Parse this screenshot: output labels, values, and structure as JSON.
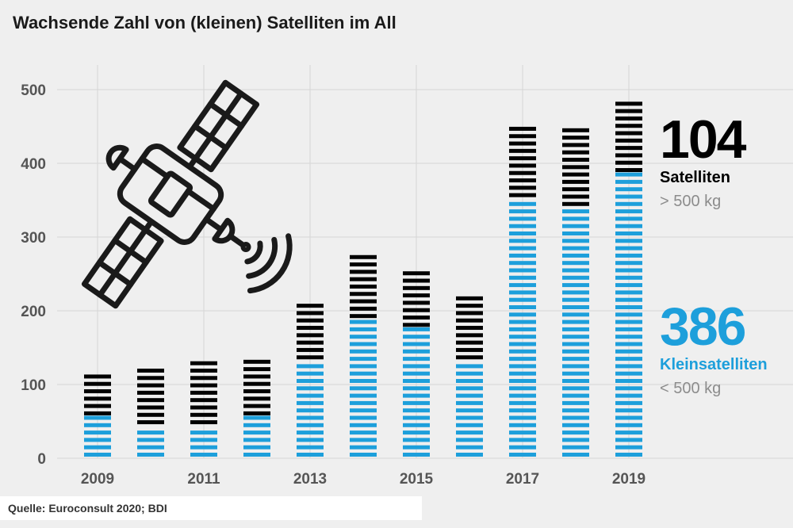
{
  "title": "Wachsende Zahl von (kleinen) Satelliten im All",
  "source": "Quelle: Euroconsult 2020; BDI",
  "colors": {
    "large": "#000000",
    "small": "#1d9fdb",
    "grid": "#d6d6d6",
    "axis_text": "#555555"
  },
  "icons": {
    "satellite": "satellite-icon"
  },
  "callouts": {
    "large": {
      "value": "104",
      "label": "Satelliten",
      "sublabel": "> 500 kg"
    },
    "small": {
      "value": "386",
      "label": "Kleinsatelliten",
      "sublabel": "< 500 kg"
    }
  },
  "chart_data": {
    "type": "bar",
    "stacked": true,
    "x": [
      2009,
      2010,
      2011,
      2012,
      2013,
      2014,
      2015,
      2016,
      2017,
      2018,
      2019
    ],
    "xticks": [
      "2009",
      "2011",
      "2013",
      "2015",
      "2017",
      "2019"
    ],
    "yticks": [
      "0",
      "100",
      "200",
      "300",
      "400",
      "500"
    ],
    "ylim": [
      0,
      500
    ],
    "series": [
      {
        "name": "Kleinsatelliten (< 500 kg)",
        "color": "#1d9fdb",
        "values": [
          56,
          44,
          44,
          56,
          132,
          188,
          176,
          132,
          352,
          340,
          386
        ]
      },
      {
        "name": "Satelliten (> 500 kg)",
        "color": "#000000",
        "values": [
          62,
          76,
          86,
          78,
          76,
          88,
          80,
          88,
          100,
          112,
          104
        ]
      }
    ]
  }
}
